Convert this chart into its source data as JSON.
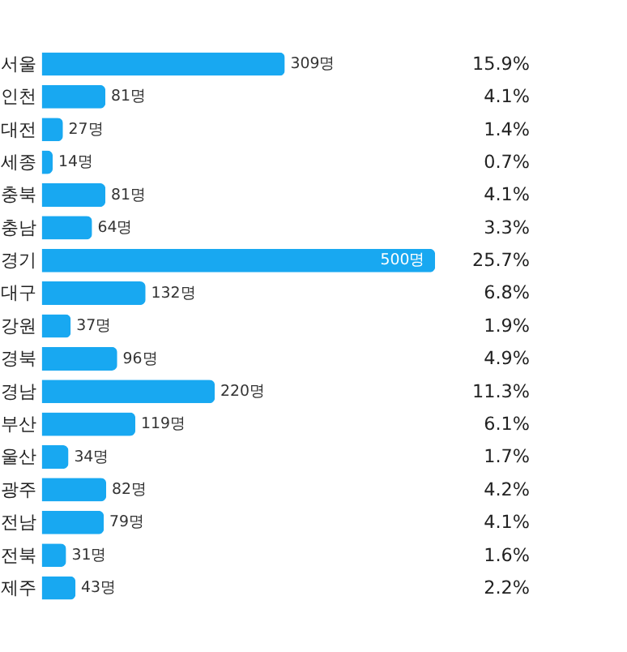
{
  "chart_data": {
    "type": "bar",
    "orientation": "horizontal",
    "tick_labels": "y",
    "categories": [
      "서울",
      "인천",
      "대전",
      "세종",
      "충북",
      "충남",
      "경기",
      "대구",
      "강원",
      "경북",
      "경남",
      "부산",
      "울산",
      "광주",
      "전남",
      "전북",
      "제주"
    ],
    "values": [
      309,
      81,
      27,
      14,
      81,
      64,
      500,
      132,
      37,
      96,
      220,
      119,
      34,
      82,
      79,
      31,
      43
    ],
    "value_labels": [
      "309명",
      "81명",
      "27명",
      "14명",
      "81명",
      "64명",
      "500명",
      "132명",
      "37명",
      "96명",
      "220명",
      "119명",
      "34명",
      "82명",
      "79명",
      "31명",
      "43명"
    ],
    "color": "#18a8f1",
    "xlim": [
      0,
      500
    ],
    "annotations": [
      "15.9%",
      "4.1%",
      "1.4%",
      "0.7%",
      "4.1%",
      "3.3%",
      "25.7%",
      "6.8%",
      "1.9%",
      "4.9%",
      "11.3%",
      "6.1%",
      "1.7%",
      "4.2%",
      "4.1%",
      "1.6%",
      "2.2%"
    ]
  }
}
